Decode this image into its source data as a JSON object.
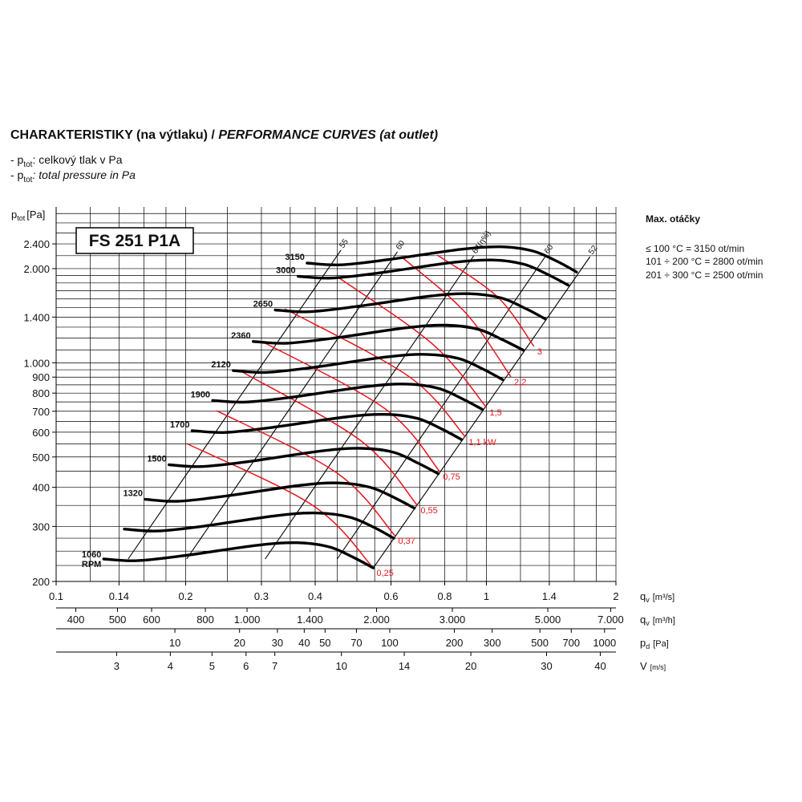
{
  "title": {
    "cz": "CHARAKTERISTIKY (na výtlaku) /",
    "en": "PERFORMANCE CURVES (at outlet)"
  },
  "notes": [
    {
      "prefix": "- p",
      "sub": "tot",
      "text": ": celkový tlak v Pa"
    },
    {
      "prefix": "- p",
      "sub": "tot",
      "text": ": total pressure in Pa"
    }
  ],
  "model": "FS 251 P1A",
  "max_speed": {
    "title": "Max. otáčky",
    "lines": [
      "≤ 100 °C = 3150 ot/min",
      "101 ÷ 200 °C = 2800 ot/min",
      "201 ÷ 300 °C = 2500 ot/min"
    ]
  },
  "chart_data": {
    "type": "line",
    "y_label": {
      "symbol": "p",
      "sub": "tot",
      "unit": "[Pa]"
    },
    "x_label": {
      "symbol": "q",
      "sub": "v",
      "unit": "[m³/s]"
    },
    "log_x": true,
    "log_y": true,
    "xlim": [
      0.1,
      2
    ],
    "ylim": [
      200,
      3150
    ],
    "xticks": [
      0.1,
      0.14,
      0.2,
      0.3,
      0.4,
      0.6,
      0.8,
      1,
      1.4,
      2
    ],
    "yticks": [
      200,
      300,
      400,
      500,
      600,
      700,
      800,
      900,
      {
        "value": 1000,
        "label": "1.000"
      },
      {
        "value": 1400,
        "label": "1.400"
      },
      {
        "value": 2000,
        "label": "2.000"
      },
      {
        "value": 2400,
        "label": "2.400"
      }
    ],
    "xgrid": [
      0.12,
      0.14,
      0.16,
      0.18,
      0.2,
      0.25,
      0.3,
      0.35,
      0.4,
      0.45,
      0.5,
      0.55,
      0.6,
      0.7,
      0.8,
      0.9,
      1,
      1.2,
      1.4,
      1.6,
      1.8,
      2
    ],
    "ygrid": [
      225,
      250,
      275,
      300,
      350,
      400,
      450,
      500,
      550,
      600,
      650,
      700,
      750,
      800,
      850,
      900,
      950,
      1000,
      1100,
      1200,
      1300,
      1400,
      1500,
      1600,
      1700,
      1800,
      1900,
      2000,
      2200,
      2400,
      2600,
      2800,
      3000
    ],
    "speed_unit": "RPM",
    "series": [
      {
        "name": "1060",
        "color": "#000000",
        "x": [
          0.129,
          0.154,
          0.199,
          0.293,
          0.363,
          0.431,
          0.49,
          0.546
        ],
        "values": [
          236,
          233,
          242,
          261,
          266,
          258,
          239,
          221
        ]
      },
      {
        "color": "#000000",
        "x": [
          0.144,
          0.172,
          0.222,
          0.327,
          0.405,
          0.481,
          0.547,
          0.609
        ],
        "values": [
          294,
          290,
          301,
          325,
          331,
          321,
          298,
          275
        ]
      },
      {
        "name": "1320",
        "color": "#000000",
        "x": [
          0.161,
          0.192,
          0.248,
          0.365,
          0.452,
          0.537,
          0.61,
          0.68
        ],
        "values": [
          366,
          361,
          375,
          405,
          413,
          400,
          371,
          343
        ]
      },
      {
        "name": "1500",
        "color": "#000000",
        "x": [
          0.183,
          0.218,
          0.282,
          0.415,
          0.514,
          0.61,
          0.693,
          0.773
        ],
        "values": [
          472,
          466,
          484,
          523,
          533,
          517,
          478,
          442
        ]
      },
      {
        "name": "1700",
        "color": "#000000",
        "x": [
          0.207,
          0.247,
          0.319,
          0.47,
          0.582,
          0.691,
          0.786,
          0.876
        ],
        "values": [
          607,
          599,
          622,
          671,
          684,
          664,
          615,
          568
        ]
      },
      {
        "name": "1900",
        "color": "#000000",
        "x": [
          0.231,
          0.276,
          0.357,
          0.525,
          0.65,
          0.772,
          0.878,
          0.978
        ],
        "values": [
          758,
          749,
          778,
          839,
          855,
          829,
          768,
          710
        ]
      },
      {
        "name": "2120",
        "color": "#000000",
        "x": [
          0.258,
          0.308,
          0.398,
          0.586,
          0.726,
          0.862,
          0.98,
          1.09
        ],
        "values": [
          944,
          932,
          968,
          1044,
          1064,
          1032,
          956,
          884
        ]
      },
      {
        "name": "2360",
        "color": "#000000",
        "x": [
          0.287,
          0.343,
          0.443,
          0.652,
          0.808,
          0.959,
          1.09,
          1.22
        ],
        "values": [
          1170,
          1155,
          1200,
          1294,
          1319,
          1279,
          1185,
          1096
        ]
      },
      {
        "name": "2650",
        "color": "#000000",
        "x": [
          0.323,
          0.385,
          0.498,
          0.733,
          0.908,
          1.08,
          1.23,
          1.37
        ],
        "values": [
          1475,
          1456,
          1513,
          1631,
          1663,
          1613,
          1494,
          1381
        ]
      },
      {
        "name": "3000",
        "color": "#000000",
        "x": [
          0.365,
          0.436,
          0.563,
          0.829,
          1.03,
          1.22,
          1.39,
          1.55
        ],
        "values": [
          1890,
          1866,
          1938,
          2091,
          2131,
          2067,
          1914,
          1770
        ]
      },
      {
        "name": "3150",
        "color": "#000000",
        "x": [
          0.383,
          0.458,
          0.591,
          0.871,
          1.08,
          1.28,
          1.46,
          1.62
        ],
        "values": [
          2084,
          2057,
          2137,
          2305,
          2349,
          2278,
          2110,
          1951
        ]
      }
    ],
    "power_lines": [
      {
        "name": "0,25",
        "color": "#e8141c",
        "x": [
          0.201,
          0.395,
          0.546
        ],
        "values": [
          552,
          350,
          221
        ]
      },
      {
        "name": "0,37",
        "color": "#e8141c",
        "x": [
          0.236,
          0.45,
          0.613
        ],
        "values": [
          703,
          444,
          280
        ]
      },
      {
        "name": "0,55",
        "color": "#e8141c",
        "x": [
          0.269,
          0.512,
          0.691
        ],
        "values": [
          939,
          562,
          350
        ]
      },
      {
        "name": "0,75",
        "color": "#e8141c",
        "x": [
          0.299,
          0.582,
          0.779
        ],
        "values": [
          1175,
          712,
          449
        ]
      },
      {
        "name": "1,1 kW",
        "color": "#e8141c",
        "x": [
          0.34,
          0.662,
          0.894
        ],
        "values": [
          1488,
          902,
          579
        ]
      },
      {
        "name": "1,5",
        "color": "#e8141c",
        "x": [
          0.45,
          0.753,
          1.0
        ],
        "values": [
          1886,
          1142,
          720
        ]
      },
      {
        "name": "2,2",
        "color": "#e8141c",
        "x": [
          0.634,
          0.894,
          1.14
        ],
        "values": [
          2185,
          1446,
          902
        ]
      },
      {
        "name": "3",
        "color": "#e8141c",
        "x": [
          0.769,
          1.06,
          1.29
        ],
        "values": [
          2211,
          1626,
          1128
        ]
      }
    ],
    "efficiency_lines": [
      {
        "name": "55",
        "color": "#000000",
        "x": [
          0.147,
          0.459
        ],
        "values": [
          236,
          2291
        ]
      },
      {
        "name": "60",
        "color": "#000000",
        "x": [
          0.201,
          0.621
        ],
        "values": [
          236,
          2264
        ]
      },
      {
        "name": "64(η%)",
        "color": "#000000",
        "x": [
          0.306,
          0.934
        ],
        "values": [
          236,
          2198
        ]
      },
      {
        "name": "60",
        "color": "#000000",
        "x": [
          0.45,
          1.374
        ],
        "values": [
          236,
          2198
        ]
      },
      {
        "name": "52",
        "color": "#000000",
        "x": [
          0.546,
          1.741
        ],
        "values": [
          221,
          2185
        ]
      }
    ],
    "secondary_axes": [
      {
        "label": {
          "symbol": "q",
          "sub": "v",
          "unit": "[m³/h]"
        },
        "xlim": [
          360,
          7200
        ],
        "xticks": [
          400,
          500,
          600,
          800,
          {
            "value": 1000,
            "label": "1.000"
          },
          {
            "value": 1400,
            "label": "1.400"
          },
          {
            "value": 2000,
            "label": "2.000"
          },
          {
            "value": 3000,
            "label": "3.000"
          },
          {
            "value": 5000,
            "label": "5.000"
          },
          {
            "value": 7000,
            "label": "7.000"
          }
        ]
      },
      {
        "label": {
          "symbol": "p",
          "sub": "d",
          "unit": "[Pa]"
        },
        "xlim": [
          2.8,
          1130
        ],
        "xticks": [
          10,
          20,
          30,
          40,
          50,
          70,
          100,
          200,
          300,
          500,
          700,
          1000
        ]
      },
      {
        "label": {
          "symbol": "V",
          "unit": "[m/s]"
        },
        "xlim": [
          2.17,
          43.5
        ],
        "xticks": [
          3,
          4,
          5,
          6,
          7,
          10,
          14,
          20,
          30,
          40
        ]
      }
    ]
  }
}
